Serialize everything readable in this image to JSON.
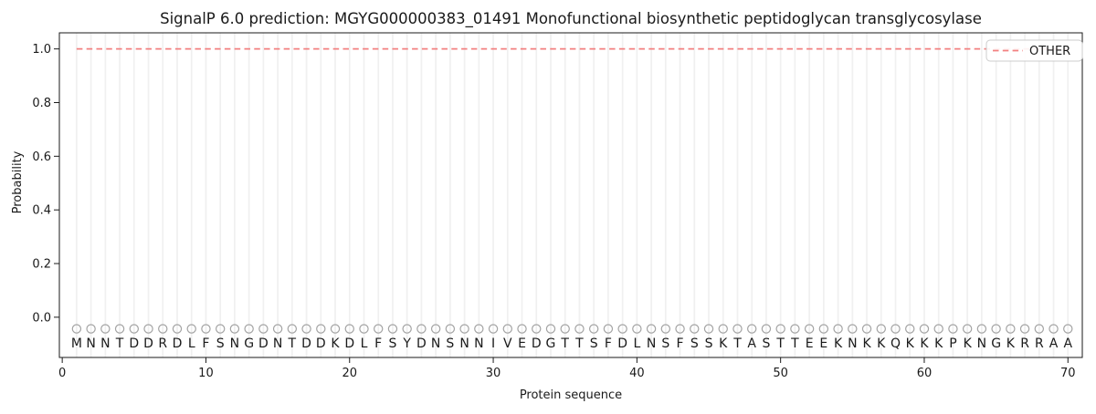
{
  "chart_data": {
    "type": "line",
    "title": "SignalP 6.0 prediction: MGYG000000383_01491 Monofunctional biosynthetic peptidoglycan transglycosylase",
    "xlabel": "Protein sequence",
    "ylabel": "Probability",
    "x_ticks": [
      0,
      10,
      20,
      30,
      40,
      50,
      60,
      70
    ],
    "x_tick_labels": [
      "0",
      "10",
      "20",
      "30",
      "40",
      "50",
      "60",
      "70"
    ],
    "y_ticks": [
      0.0,
      0.2,
      0.4,
      0.6,
      0.8,
      1.0
    ],
    "y_tick_labels": [
      "0.0",
      "0.2",
      "0.4",
      "0.6",
      "0.8",
      "1.0"
    ],
    "xlim": [
      -0.2,
      71
    ],
    "ylim": [
      -0.15,
      1.06
    ],
    "grid": "vertical line at every residue position, horizontal grid off",
    "sequence": "MNNTDDRDLFSNGDNTDDKDLFSYDNSNNIVEDGTTSFDLNSFSSKTASTTEEKNKKQKKKPKNGKRRAA",
    "sequence_length": 70,
    "series": [
      {
        "name": "OTHER",
        "style": "dashed",
        "color": "#f28080",
        "x_start": 1,
        "x_end": 70,
        "constant_value": 1.0
      }
    ],
    "residue_markers": {
      "shape": "open-circle",
      "color": "#a3a3a3",
      "y_value": -0.05
    },
    "legend": {
      "position": "upper-right",
      "entries": [
        {
          "label": "OTHER",
          "style": "dashed",
          "color": "#f28080"
        }
      ]
    }
  },
  "colors": {
    "background": "#ffffff",
    "gridline": "#f0f0f0",
    "spine": "#1a1a1a",
    "dashed_line": "#f28080",
    "marker_stroke": "#a3a3a3",
    "text": "#1a1a1a",
    "legend_border": "#cccccc"
  }
}
